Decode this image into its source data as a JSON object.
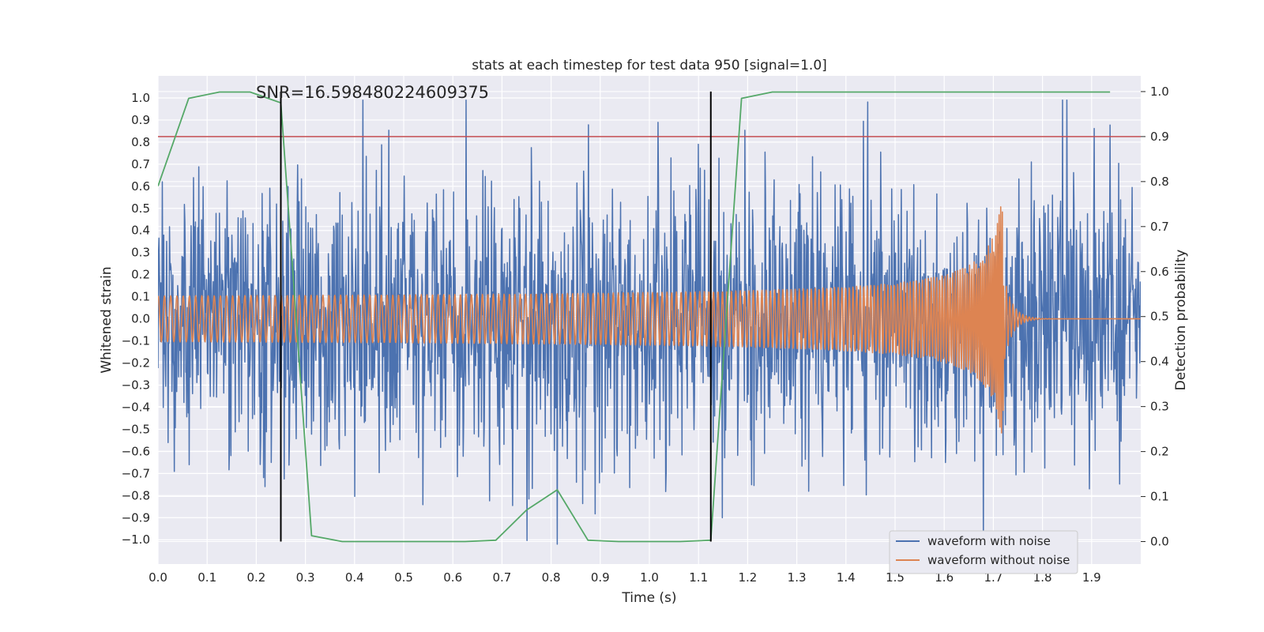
{
  "chart_data": {
    "type": "line",
    "title": "stats at each timestep for test data 950 [signal=1.0]",
    "annotation": "SNR=16.598480224609375",
    "xlabel": "Time (s)",
    "ylabel_left": "Whitened strain",
    "ylabel_right": "Detection probability",
    "xlim": [
      0.0,
      2.0
    ],
    "ylim_left": [
      -1.11,
      1.1
    ],
    "ylim_right": [
      -0.05,
      1.035
    ],
    "x_ticks": [
      "0.0",
      "0.1",
      "0.2",
      "0.3",
      "0.4",
      "0.5",
      "0.6",
      "0.7",
      "0.8",
      "0.9",
      "1.0",
      "1.1",
      "1.2",
      "1.3",
      "1.4",
      "1.5",
      "1.6",
      "1.7",
      "1.8",
      "1.9"
    ],
    "y_ticks_left": [
      "1.0",
      "0.9",
      "0.8",
      "0.7",
      "0.6",
      "0.5",
      "0.4",
      "0.3",
      "0.2",
      "0.1",
      "0.0",
      "−0.1",
      "−0.2",
      "−0.3",
      "−0.4",
      "−0.5",
      "−0.6",
      "−0.7",
      "−0.8",
      "−0.9",
      "−1.0"
    ],
    "y_ticks_right": [
      "1.0",
      "0.9",
      "0.8",
      "0.7",
      "0.6",
      "0.5",
      "0.4",
      "0.3",
      "0.2",
      "0.1",
      "0.0"
    ],
    "grid": true,
    "legend_position": "bottom-right",
    "series": [
      {
        "name": "waveform with noise",
        "color": "#4c72b0",
        "axis": "left",
        "generator": "noise",
        "samples": 2048,
        "amplitude_scale": 0.3
      },
      {
        "name": "waveform without noise",
        "color": "#dd8452",
        "axis": "left",
        "generator": "chirp",
        "samples": 2400,
        "merger_time": 1.72,
        "peak_amplitude": 0.55
      },
      {
        "color": "#55a868",
        "axis": "right",
        "x": [
          0.0,
          0.0625,
          0.125,
          0.1875,
          0.25,
          0.3125,
          0.375,
          0.4375,
          0.5,
          0.5625,
          0.625,
          0.6875,
          0.75,
          0.8125,
          0.875,
          0.9375,
          1.0,
          1.0625,
          1.125,
          1.1875,
          1.25,
          1.3125,
          1.375,
          1.4375,
          1.5,
          1.5625,
          1.625,
          1.6875,
          1.75,
          1.8125,
          1.875,
          1.9375
        ],
        "values": [
          0.79,
          0.985,
          0.999,
          0.999,
          0.975,
          0.013,
          0.0,
          0.0,
          0.0,
          0.0,
          0.0,
          0.003,
          0.07,
          0.115,
          0.003,
          0.0,
          0.0,
          0.0,
          0.003,
          0.985,
          0.999,
          0.999,
          0.999,
          0.999,
          0.999,
          0.999,
          0.999,
          0.999,
          0.999,
          0.999,
          0.999,
          0.999
        ]
      }
    ],
    "threshold_line": {
      "axis": "right",
      "value": 0.9,
      "color": "#c44e52"
    },
    "vertical_markers": [
      {
        "x": 0.25,
        "axis": "right",
        "from": 0.0,
        "to": 1.0,
        "color": "#000000"
      },
      {
        "x": 1.125,
        "axis": "right",
        "from": 0.0,
        "to": 1.0,
        "color": "#000000"
      }
    ]
  }
}
